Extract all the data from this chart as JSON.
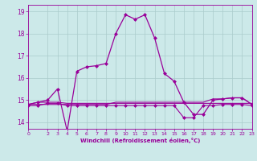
{
  "xlabel": "Windchill (Refroidissement éolien,°C)",
  "xlim": [
    0,
    23
  ],
  "ylim": [
    13.7,
    19.3
  ],
  "yticks": [
    14,
    15,
    16,
    17,
    18,
    19
  ],
  "xticks": [
    0,
    2,
    3,
    4,
    5,
    6,
    7,
    8,
    9,
    10,
    11,
    12,
    13,
    14,
    15,
    16,
    17,
    18,
    19,
    20,
    21,
    22,
    23
  ],
  "bg_color": "#cce9e9",
  "grid_color": "#b0d8d8",
  "line_color": "#990099",
  "line1_x": [
    0,
    1,
    2,
    3,
    4,
    5,
    6,
    7,
    8,
    9,
    10,
    11,
    12,
    13,
    14,
    15,
    16,
    17,
    18,
    19,
    20,
    21,
    22,
    23
  ],
  "line1_y": [
    14.8,
    14.9,
    15.0,
    15.5,
    13.6,
    16.3,
    16.5,
    16.55,
    16.65,
    18.0,
    18.85,
    18.65,
    18.85,
    17.8,
    16.2,
    15.85,
    14.9,
    14.35,
    14.35,
    15.0,
    15.05,
    15.1,
    15.1,
    14.8
  ],
  "line2_x": [
    0,
    1,
    2,
    3,
    4,
    5,
    6,
    7,
    8,
    9,
    10,
    11,
    12,
    13,
    14,
    15,
    16,
    17,
    18,
    19,
    20,
    21,
    22,
    23
  ],
  "line2_y": [
    14.8,
    14.9,
    14.9,
    14.9,
    14.85,
    14.85,
    14.85,
    14.85,
    14.85,
    14.85,
    14.85,
    14.85,
    14.85,
    14.85,
    14.85,
    14.85,
    14.85,
    14.85,
    14.85,
    14.85,
    14.85,
    14.85,
    14.85,
    14.85
  ],
  "line3_x": [
    0,
    1,
    2,
    3,
    4,
    5,
    6,
    7,
    8,
    9,
    10,
    11,
    12,
    13,
    14,
    15,
    16,
    17,
    18,
    19,
    20,
    21,
    22,
    23
  ],
  "line3_y": [
    14.8,
    14.8,
    14.8,
    14.8,
    14.8,
    14.8,
    14.8,
    14.8,
    14.8,
    14.9,
    14.9,
    14.9,
    14.9,
    14.9,
    14.9,
    14.9,
    14.9,
    14.9,
    14.9,
    15.05,
    15.05,
    15.1,
    15.1,
    14.8
  ],
  "line4_x": [
    0,
    1,
    2,
    3,
    4,
    5,
    6,
    7,
    8,
    9,
    10,
    11,
    12,
    13,
    14,
    15,
    16,
    17,
    18,
    19,
    20,
    21,
    22,
    23
  ],
  "line4_y": [
    14.75,
    14.75,
    14.85,
    14.85,
    14.75,
    14.75,
    14.75,
    14.75,
    14.75,
    14.75,
    14.75,
    14.75,
    14.75,
    14.75,
    14.75,
    14.75,
    14.2,
    14.2,
    14.75,
    14.75,
    14.8,
    14.8,
    14.8,
    14.75
  ]
}
